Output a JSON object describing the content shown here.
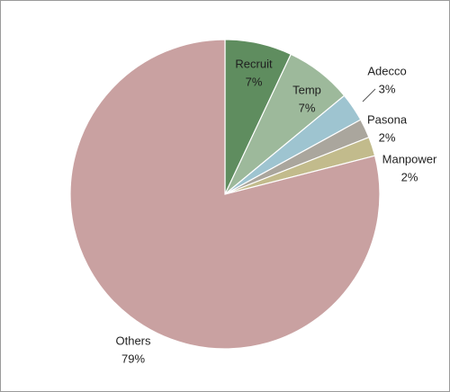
{
  "chart_data": {
    "type": "pie",
    "categories": [
      "Recruit",
      "Temp",
      "Adecco",
      "Pasona",
      "Manpower",
      "Others"
    ],
    "values": [
      7,
      7,
      3,
      2,
      2,
      79
    ],
    "value_labels": [
      "7%",
      "7%",
      "3%",
      "2%",
      "2%",
      "79%"
    ],
    "colors": [
      "#5f8d5f",
      "#9db99b",
      "#9ec4d0",
      "#aaa69d",
      "#c2bb8c",
      "#c9a1a1"
    ]
  }
}
